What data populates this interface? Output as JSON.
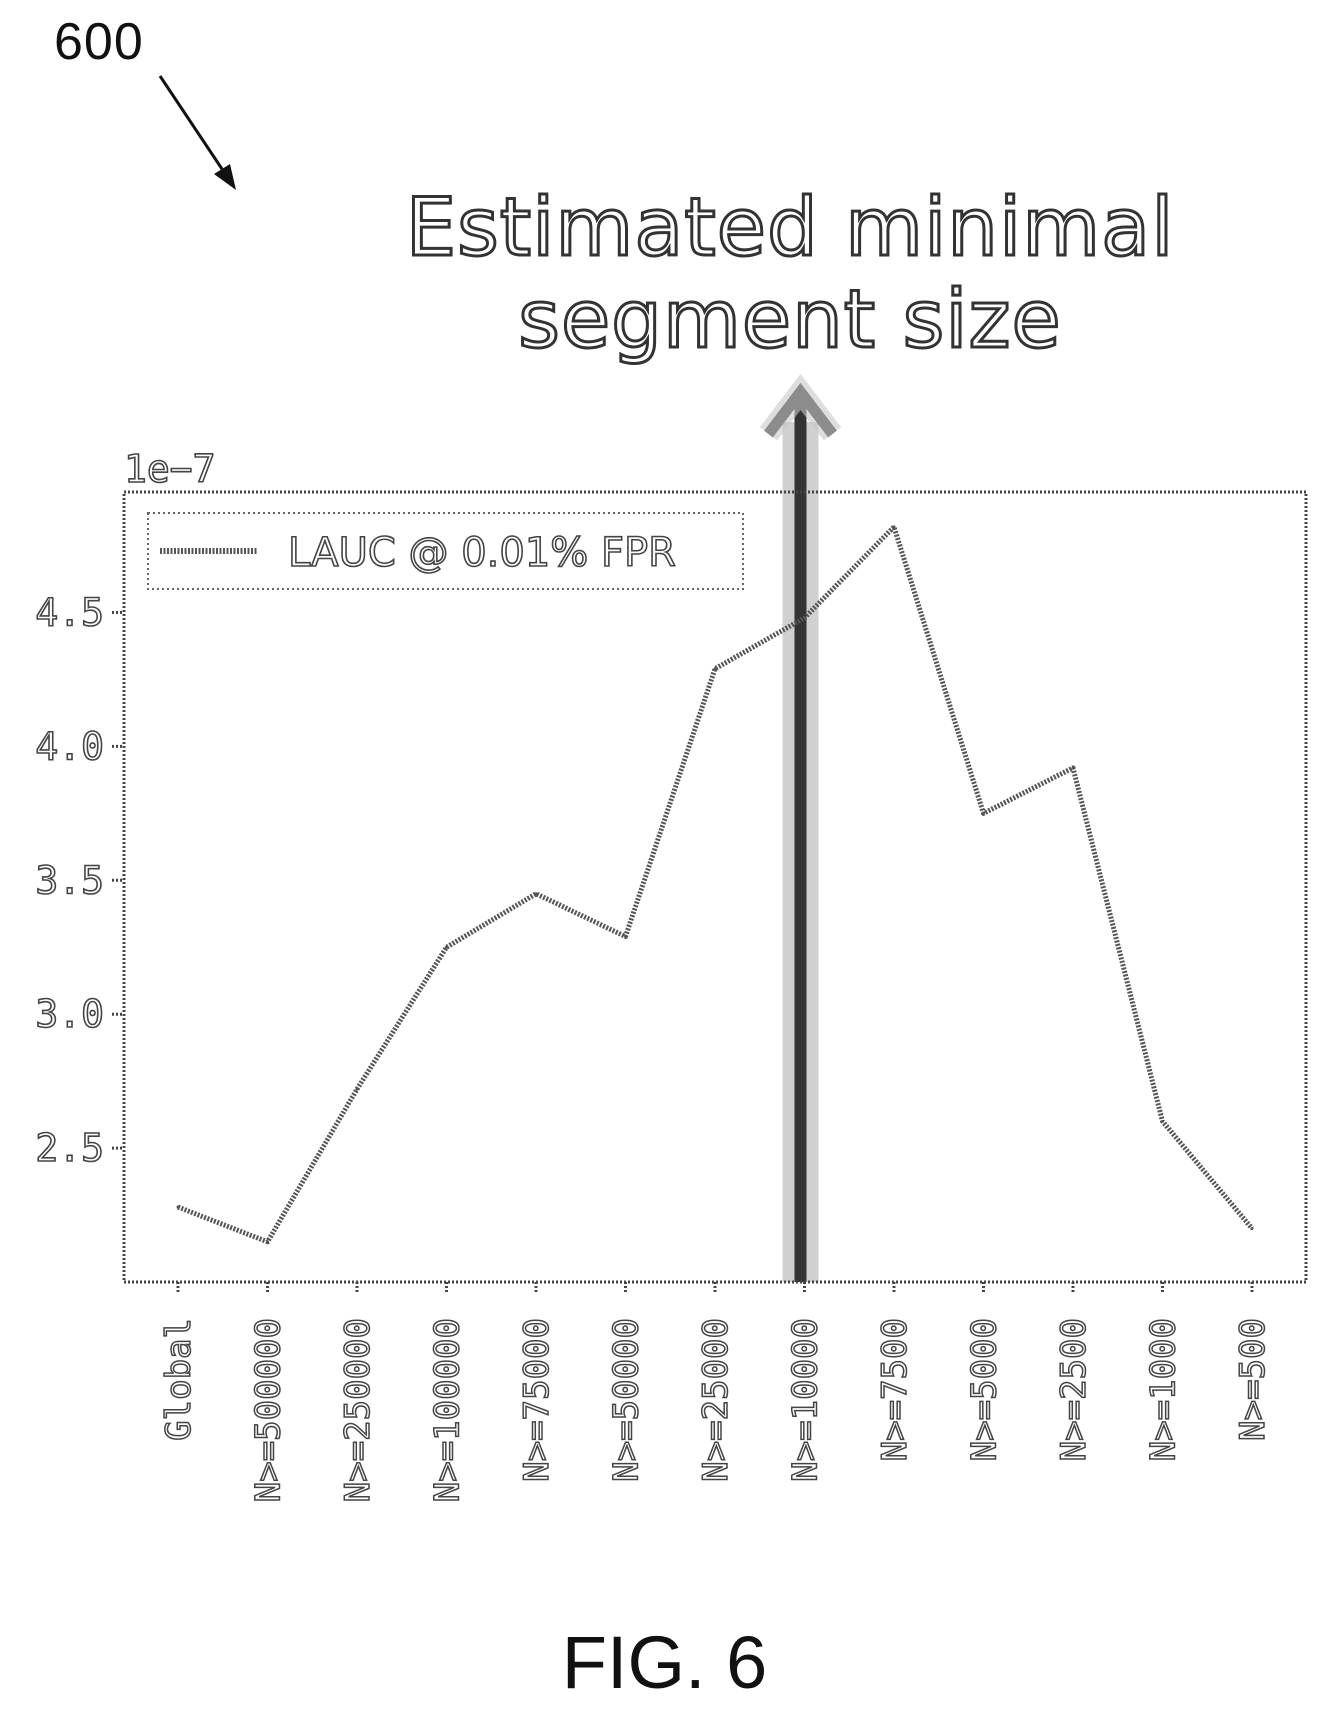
{
  "figure": {
    "ref_number": "600",
    "caption": "FIG. 6",
    "annotation_lines": [
      "Estimated minimal",
      "segment size"
    ],
    "colors": {
      "line": "#555555",
      "arrow": "#333333",
      "arrow_halo": "#bdbdbd",
      "frame": "#444444"
    }
  },
  "chart_data": {
    "type": "line",
    "title": "",
    "xlabel": "",
    "ylabel": "",
    "y_offset_label": "1e−7",
    "categories": [
      "Global",
      "N>=500000",
      "N>=250000",
      "N>=100000",
      "N>=75000",
      "N>=50000",
      "N>=25000",
      "N>=10000",
      "N>=7500",
      "N>=5000",
      "N>=2500",
      "N>=1000",
      "N>=500"
    ],
    "series": [
      {
        "name": "LAUC @ 0.01% FPR",
        "values": [
          2.28,
          2.15,
          2.72,
          3.25,
          3.45,
          3.29,
          4.29,
          4.48,
          4.82,
          3.75,
          3.92,
          2.6,
          2.2
        ]
      }
    ],
    "yticks": [
      2.5,
      3.0,
      3.5,
      4.0,
      4.5
    ],
    "ytick_labels": [
      "2.5",
      "3.0",
      "3.5",
      "4.0",
      "4.5"
    ],
    "ylim": [
      2.0,
      4.95
    ],
    "legend": "top-left",
    "grid": false,
    "marker_category": "N>=10000"
  }
}
